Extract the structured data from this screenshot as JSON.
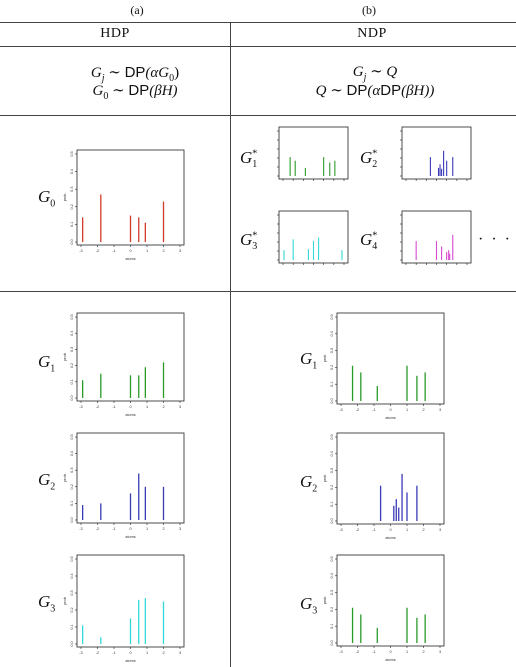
{
  "captions": {
    "a": "(a)",
    "b": "(b)"
  },
  "headers": {
    "left": "HDP",
    "right": "NDP"
  },
  "formulas": {
    "hdp_line1": {
      "lhs": "G",
      "sub": "j",
      "rel": " ∼ ",
      "op": "DP",
      "arg": "(αG",
      "argsub": "0",
      "close": ")"
    },
    "hdp_line2": {
      "lhs": "G",
      "sub": "0",
      "rel": " ∼ ",
      "op": "DP",
      "arg": "(βH)"
    },
    "ndp_line1": {
      "lhs": "G",
      "sub": "j",
      "rel": " ∼ ",
      "rhs": "Q"
    },
    "ndp_line2": {
      "lhs": "Q",
      "rel": " ∼ ",
      "op": "DP",
      "arg1": "(α",
      "op2": "DP",
      "arg2": "(βH))"
    }
  },
  "labels": {
    "G0": {
      "base": "G",
      "sub": "0"
    },
    "G1star": {
      "base": "G",
      "sub": "1",
      "sup": "*"
    },
    "G2star": {
      "base": "G",
      "sub": "2",
      "sup": "*"
    },
    "G3star": {
      "base": "G",
      "sub": "3",
      "sup": "*"
    },
    "G4star": {
      "base": "G",
      "sub": "4",
      "sup": "*"
    },
    "hdp_G1": {
      "base": "G",
      "sub": "1"
    },
    "hdp_G2": {
      "base": "G",
      "sub": "2"
    },
    "hdp_G3": {
      "base": "G",
      "sub": "3"
    },
    "ndp_G1": {
      "base": "G",
      "sub": "1"
    },
    "ndp_G2": {
      "base": "G",
      "sub": "2"
    },
    "ndp_G3": {
      "base": "G",
      "sub": "3"
    },
    "ellipsis": "· · ·"
  },
  "colors": {
    "red": "#d23a2a",
    "green": "#2a9a2a",
    "blue": "#3a3ab8",
    "cyan": "#33d8d8",
    "magenta": "#d848d0"
  },
  "chart_data": [
    {
      "id": "hdp_G0",
      "type": "bar",
      "color": "red",
      "ylabel": "prob",
      "xlabel": "atoms",
      "yticks": [
        "0.0",
        "0.1",
        "0.2",
        "0.3",
        "0.4",
        "0.5"
      ],
      "xticks": [
        "-3",
        "-2",
        "-1",
        "0",
        "1",
        "2",
        "3"
      ],
      "ylim": [
        0,
        0.5
      ],
      "xlim": [
        -3,
        3
      ],
      "x": [
        -2.9,
        -1.8,
        0.0,
        0.5,
        0.9,
        2.0
      ],
      "values": [
        0.14,
        0.27,
        0.15,
        0.14,
        0.11,
        0.23
      ]
    },
    {
      "id": "ndp_G1star",
      "type": "bar",
      "color": "green",
      "small": true,
      "x": [
        -2.3,
        -1.8,
        -0.8,
        1.0,
        1.6,
        2.1
      ],
      "values": [
        0.21,
        0.17,
        0.09,
        0.21,
        0.15,
        0.17
      ]
    },
    {
      "id": "ndp_G2star",
      "type": "bar",
      "color": "blue",
      "small": true,
      "x": [
        -0.6,
        0.2,
        0.35,
        0.5,
        0.7,
        1.0,
        1.6
      ],
      "values": [
        0.21,
        0.09,
        0.13,
        0.08,
        0.28,
        0.17,
        0.21
      ]
    },
    {
      "id": "ndp_G3star",
      "type": "bar",
      "color": "cyan",
      "small": true,
      "x": [
        -2.9,
        -2.0,
        -0.5,
        0.0,
        0.5,
        2.8
      ],
      "values": [
        0.11,
        0.23,
        0.12,
        0.21,
        0.25,
        0.11
      ]
    },
    {
      "id": "ndp_G4star",
      "type": "bar",
      "color": "magenta",
      "small": true,
      "x": [
        -2.0,
        0.0,
        0.5,
        1.0,
        1.2,
        1.3,
        1.6
      ],
      "values": [
        0.21,
        0.21,
        0.15,
        0.09,
        0.11,
        0.07,
        0.28
      ]
    },
    {
      "id": "hdp_G1",
      "type": "bar",
      "color": "green",
      "ylabel": "prob",
      "xlabel": "atoms",
      "yticks": [
        "0.0",
        "0.1",
        "0.2",
        "0.3",
        "0.4",
        "0.5"
      ],
      "xticks": [
        "-3",
        "-2",
        "-1",
        "0",
        "1",
        "2",
        "3"
      ],
      "ylim": [
        0,
        0.5
      ],
      "xlim": [
        -3,
        3
      ],
      "x": [
        -2.9,
        -1.8,
        0.0,
        0.5,
        0.9,
        2.0
      ],
      "values": [
        0.11,
        0.15,
        0.14,
        0.14,
        0.19,
        0.22
      ]
    },
    {
      "id": "hdp_G2",
      "type": "bar",
      "color": "blue",
      "ylabel": "prob",
      "xlabel": "atoms",
      "yticks": [
        "0.0",
        "0.1",
        "0.2",
        "0.3",
        "0.4",
        "0.5"
      ],
      "xticks": [
        "-3",
        "-2",
        "-1",
        "0",
        "1",
        "2",
        "3"
      ],
      "ylim": [
        0,
        0.5
      ],
      "xlim": [
        -3,
        3
      ],
      "x": [
        -2.9,
        -1.8,
        0.0,
        0.5,
        0.9,
        2.0
      ],
      "values": [
        0.09,
        0.1,
        0.16,
        0.28,
        0.2,
        0.2
      ]
    },
    {
      "id": "hdp_G3",
      "type": "bar",
      "color": "cyan",
      "ylabel": "prob",
      "xlabel": "atoms",
      "yticks": [
        "0.0",
        "0.1",
        "0.2",
        "0.3",
        "0.4",
        "0.5"
      ],
      "xticks": [
        "-3",
        "-2",
        "-1",
        "0",
        "1",
        "2",
        "3"
      ],
      "ylim": [
        0,
        0.5
      ],
      "xlim": [
        -3,
        3
      ],
      "x": [
        -2.9,
        -1.8,
        0.0,
        0.5,
        0.9,
        2.0
      ],
      "values": [
        0.11,
        0.04,
        0.15,
        0.26,
        0.27,
        0.25
      ]
    },
    {
      "id": "ndp_G1",
      "type": "bar",
      "color": "green",
      "ylabel": "prob",
      "xlabel": "atoms",
      "yticks": [
        "0.0",
        "0.1",
        "0.2",
        "0.3",
        "0.4",
        "0.5"
      ],
      "xticks": [
        "-3",
        "-2",
        "-1",
        "0",
        "1",
        "2",
        "3"
      ],
      "ylim": [
        0,
        0.5
      ],
      "xlim": [
        -3,
        3
      ],
      "x": [
        -2.3,
        -1.8,
        -0.8,
        1.0,
        1.6,
        2.1
      ],
      "values": [
        0.21,
        0.17,
        0.09,
        0.21,
        0.15,
        0.17
      ]
    },
    {
      "id": "ndp_G2",
      "type": "bar",
      "color": "blue",
      "ylabel": "prob",
      "xlabel": "atoms",
      "yticks": [
        "0.0",
        "0.1",
        "0.2",
        "0.3",
        "0.4",
        "0.5"
      ],
      "xticks": [
        "-3",
        "-2",
        "-1",
        "0",
        "1",
        "2",
        "3"
      ],
      "ylim": [
        0,
        0.5
      ],
      "xlim": [
        -3,
        3
      ],
      "x": [
        -0.6,
        0.2,
        0.35,
        0.5,
        0.7,
        1.0,
        1.6
      ],
      "values": [
        0.21,
        0.09,
        0.13,
        0.08,
        0.28,
        0.17,
        0.21
      ]
    },
    {
      "id": "ndp_G3",
      "type": "bar",
      "color": "green",
      "ylabel": "prob",
      "xlabel": "atoms",
      "yticks": [
        "0.0",
        "0.1",
        "0.2",
        "0.3",
        "0.4",
        "0.5"
      ],
      "xticks": [
        "-3",
        "-2",
        "-1",
        "0",
        "1",
        "2",
        "3"
      ],
      "ylim": [
        0,
        0.5
      ],
      "xlim": [
        -3,
        3
      ],
      "x": [
        -2.3,
        -1.8,
        -0.8,
        1.0,
        1.6,
        2.1
      ],
      "values": [
        0.21,
        0.17,
        0.09,
        0.21,
        0.15,
        0.17
      ]
    }
  ]
}
